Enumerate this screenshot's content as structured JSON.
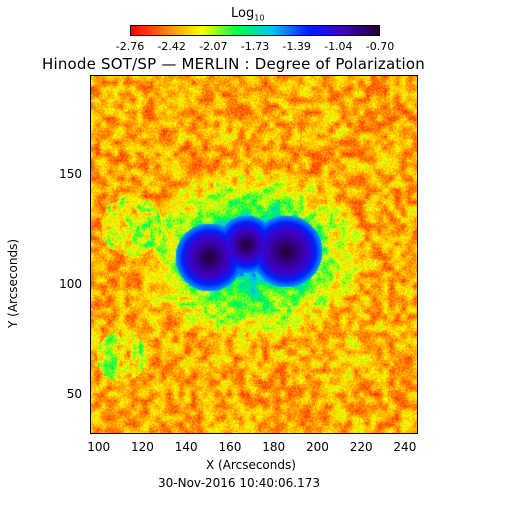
{
  "colorbar": {
    "title_main": "Log",
    "title_sub": "10",
    "ticks": [
      "-2.76",
      "-2.42",
      "-2.07",
      "-1.73",
      "-1.39",
      "-1.04",
      "-0.70"
    ],
    "colors": [
      "#ff0000",
      "#ff8000",
      "#ffff00",
      "#00ff40",
      "#00c0ff",
      "#0020ff",
      "#4000c0",
      "#200030"
    ]
  },
  "plot": {
    "title": "Hinode SOT/SP — MERLIN : Degree of Polarization",
    "xlabel": "X (Arcseconds)",
    "ylabel": "Y (Arcseconds)",
    "x_ticks": [
      "100",
      "120",
      "140",
      "160",
      "180",
      "200",
      "220",
      "240"
    ],
    "y_ticks": [
      "50",
      "100",
      "150"
    ],
    "x_range": [
      96,
      246
    ],
    "y_range": [
      32,
      195
    ]
  },
  "timestamp": "30-Nov-2016 10:40:06.173"
}
